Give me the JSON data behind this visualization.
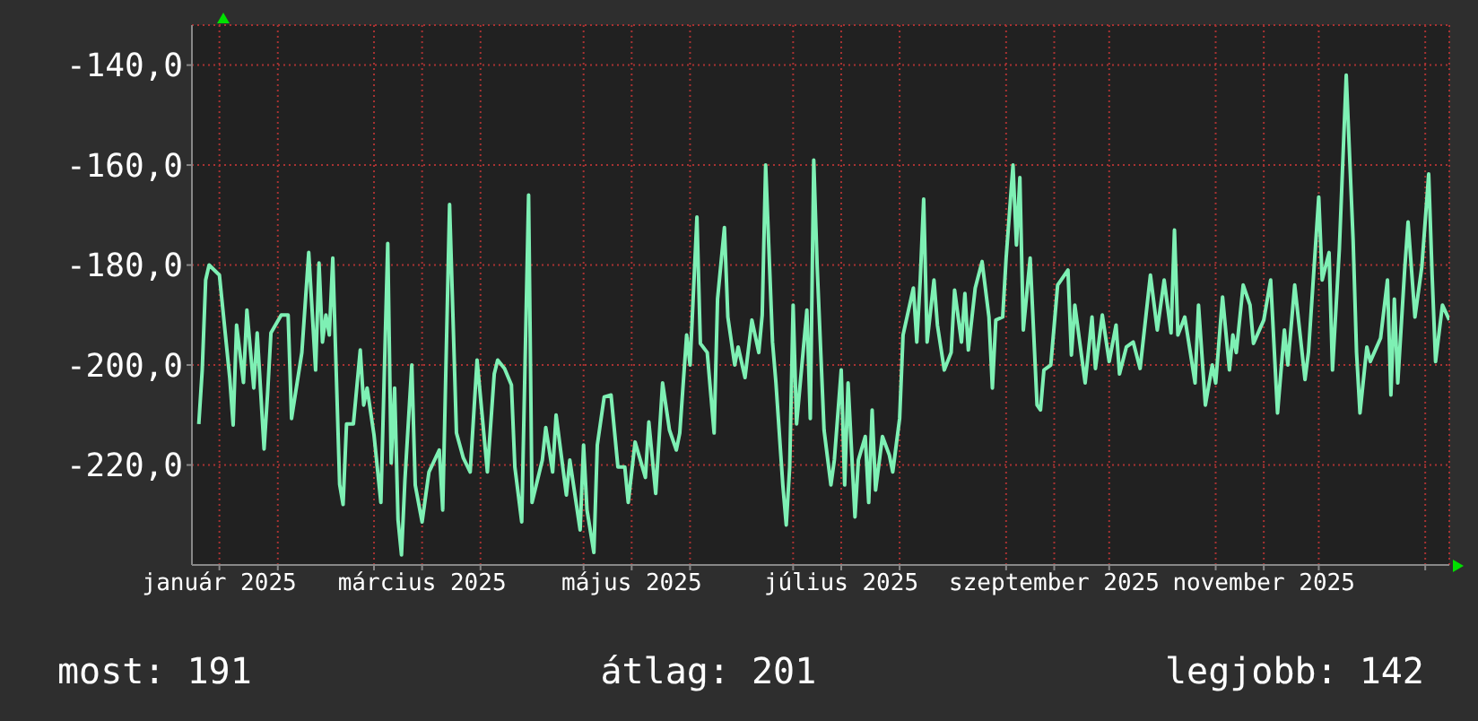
{
  "chart_data": {
    "type": "line",
    "xlim": [
      "2025-01-07",
      "2026-01-08"
    ],
    "ylim": [
      -240,
      -132
    ],
    "yticks": [
      {
        "value": -140,
        "label": "-140,0"
      },
      {
        "value": -160,
        "label": "-160,0"
      },
      {
        "value": -180,
        "label": "-180,0"
      },
      {
        "value": -200,
        "label": "-200,0"
      },
      {
        "value": -220,
        "label": "-220,0"
      }
    ],
    "xticks": [
      {
        "value": "2025-01-15",
        "label": "január 2025"
      },
      {
        "value": "2025-02-01",
        "label": null
      },
      {
        "value": "2025-03-01",
        "label": null
      },
      {
        "value": "2025-03-15",
        "label": "március 2025"
      },
      {
        "value": "2025-04-01",
        "label": null
      },
      {
        "value": "2025-05-01",
        "label": null
      },
      {
        "value": "2025-05-15",
        "label": "május 2025"
      },
      {
        "value": "2025-06-01",
        "label": null
      },
      {
        "value": "2025-07-01",
        "label": null
      },
      {
        "value": "2025-07-15",
        "label": "július 2025"
      },
      {
        "value": "2025-08-01",
        "label": null
      },
      {
        "value": "2025-09-01",
        "label": null
      },
      {
        "value": "2025-09-15",
        "label": "szeptember 2025"
      },
      {
        "value": "2025-10-01",
        "label": null
      },
      {
        "value": "2025-11-01",
        "label": null
      },
      {
        "value": "2025-11-15",
        "label": "november 2025"
      },
      {
        "value": "2025-12-01",
        "label": null
      },
      {
        "value": "2026-01-01",
        "label": null
      }
    ],
    "grid": true,
    "marker": "none",
    "line_style": "solid",
    "annotations": [
      "most: 191",
      "átlag: 201",
      "legjobb: 142"
    ],
    "series": [
      {
        "color": "#7ef0b4",
        "x": [
          "2025-01-09",
          "2025-01-10",
          "2025-01-11",
          "2025-01-12",
          "2025-01-15",
          "2025-01-18",
          "2025-01-19",
          "2025-01-20",
          "2025-01-22",
          "2025-01-23",
          "2025-01-25",
          "2025-01-26",
          "2025-01-28",
          "2025-01-29",
          "2025-01-30",
          "2025-02-02",
          "2025-02-04",
          "2025-02-05",
          "2025-02-08",
          "2025-02-10",
          "2025-02-12",
          "2025-02-13",
          "2025-02-14",
          "2025-02-15",
          "2025-02-16",
          "2025-02-17",
          "2025-02-19",
          "2025-02-20",
          "2025-02-21",
          "2025-02-23",
          "2025-02-25",
          "2025-02-26",
          "2025-02-27",
          "2025-03-01",
          "2025-03-03",
          "2025-03-05",
          "2025-03-06",
          "2025-03-07",
          "2025-03-08",
          "2025-03-09",
          "2025-03-10",
          "2025-03-12",
          "2025-03-13",
          "2025-03-15",
          "2025-03-17",
          "2025-03-20",
          "2025-03-21",
          "2025-03-23",
          "2025-03-25",
          "2025-03-27",
          "2025-03-29",
          "2025-03-31",
          "2025-04-03",
          "2025-04-05",
          "2025-04-06",
          "2025-04-08",
          "2025-04-10",
          "2025-04-11",
          "2025-04-13",
          "2025-04-15",
          "2025-04-16",
          "2025-04-19",
          "2025-04-20",
          "2025-04-22",
          "2025-04-23",
          "2025-04-26",
          "2025-04-27",
          "2025-04-30",
          "2025-05-01",
          "2025-05-02",
          "2025-05-04",
          "2025-05-05",
          "2025-05-07",
          "2025-05-09",
          "2025-05-11",
          "2025-05-13",
          "2025-05-14",
          "2025-05-16",
          "2025-05-19",
          "2025-05-20",
          "2025-05-22",
          "2025-05-24",
          "2025-05-26",
          "2025-05-28",
          "2025-05-29",
          "2025-05-31",
          "2025-06-01",
          "2025-06-03",
          "2025-06-04",
          "2025-06-06",
          "2025-06-08",
          "2025-06-09",
          "2025-06-11",
          "2025-06-12",
          "2025-06-14",
          "2025-06-15",
          "2025-06-17",
          "2025-06-19",
          "2025-06-21",
          "2025-06-22",
          "2025-06-23",
          "2025-06-25",
          "2025-06-26",
          "2025-06-28",
          "2025-06-29",
          "2025-06-30",
          "2025-07-01",
          "2025-07-02",
          "2025-07-05",
          "2025-07-06",
          "2025-07-07",
          "2025-07-08",
          "2025-07-10",
          "2025-07-12",
          "2025-07-13",
          "2025-07-15",
          "2025-07-16",
          "2025-07-17",
          "2025-07-19",
          "2025-07-20",
          "2025-07-22",
          "2025-07-23",
          "2025-07-24",
          "2025-07-25",
          "2025-07-27",
          "2025-07-29",
          "2025-07-30",
          "2025-08-01",
          "2025-08-02",
          "2025-08-05",
          "2025-08-06",
          "2025-08-07",
          "2025-08-08",
          "2025-08-09",
          "2025-08-11",
          "2025-08-12",
          "2025-08-14",
          "2025-08-16",
          "2025-08-17",
          "2025-08-19",
          "2025-08-20",
          "2025-08-21",
          "2025-08-23",
          "2025-08-25",
          "2025-08-27",
          "2025-08-28",
          "2025-08-29",
          "2025-08-31",
          "2025-09-01",
          "2025-09-03",
          "2025-09-04",
          "2025-09-05",
          "2025-09-06",
          "2025-09-08",
          "2025-09-10",
          "2025-09-11",
          "2025-09-12",
          "2025-09-14",
          "2025-09-16",
          "2025-09-19",
          "2025-09-20",
          "2025-09-21",
          "2025-09-24",
          "2025-09-26",
          "2025-09-27",
          "2025-09-29",
          "2025-10-01",
          "2025-10-03",
          "2025-10-04",
          "2025-10-06",
          "2025-10-08",
          "2025-10-10",
          "2025-10-13",
          "2025-10-15",
          "2025-10-17",
          "2025-10-19",
          "2025-10-20",
          "2025-10-21",
          "2025-10-23",
          "2025-10-26",
          "2025-10-27",
          "2025-10-29",
          "2025-10-31",
          "2025-11-01",
          "2025-11-03",
          "2025-11-05",
          "2025-11-06",
          "2025-11-07",
          "2025-11-09",
          "2025-11-11",
          "2025-11-12",
          "2025-11-15",
          "2025-11-17",
          "2025-11-19",
          "2025-11-21",
          "2025-11-22",
          "2025-11-24",
          "2025-11-27",
          "2025-11-28",
          "2025-12-01",
          "2025-12-02",
          "2025-12-04",
          "2025-12-05",
          "2025-12-07",
          "2025-12-09",
          "2025-12-11",
          "2025-12-12",
          "2025-12-13",
          "2025-12-15",
          "2025-12-16",
          "2025-12-19",
          "2025-12-21",
          "2025-12-22",
          "2025-12-23",
          "2025-12-24",
          "2025-12-26",
          "2025-12-27",
          "2025-12-29",
          "2025-12-31",
          "2026-01-02",
          "2026-01-03",
          "2026-01-04",
          "2026-01-06",
          "2026-01-08"
        ],
        "values": [
          -211.8,
          -201,
          -183,
          -180,
          -182,
          -202.5,
          -212,
          -192,
          -203.5,
          -189,
          -204.6,
          -193.6,
          -216.8,
          -206,
          -193.6,
          -190,
          -190,
          -210.7,
          -197.5,
          -177.5,
          -201,
          -179.6,
          -195.4,
          -190,
          -194,
          -178.6,
          -223.9,
          -227.9,
          -211.8,
          -211.8,
          -197,
          -208,
          -204.6,
          -214,
          -227.5,
          -175.7,
          -219.6,
          -204.6,
          -231,
          -238,
          -223,
          -200,
          -224,
          -231.4,
          -221.4,
          -217,
          -229,
          -167.9,
          -213.6,
          -218.6,
          -221.4,
          -199,
          -221.4,
          -201.8,
          -199,
          -200.7,
          -204,
          -220.4,
          -231.4,
          -166,
          -227.5,
          -219,
          -212.5,
          -221.4,
          -210,
          -226,
          -219,
          -233,
          -216,
          -229,
          -237.5,
          -216,
          -206.4,
          -206,
          -220.4,
          -220.4,
          -227.5,
          -215.4,
          -222.5,
          -211.4,
          -225.7,
          -203.6,
          -213,
          -217,
          -213.6,
          -194,
          -200,
          -170.4,
          -195.7,
          -197.5,
          -213.6,
          -186.8,
          -172.5,
          -190.4,
          -200,
          -196.4,
          -202.5,
          -191,
          -197.5,
          -190,
          -160,
          -195.4,
          -203.6,
          -224,
          -232,
          -220.4,
          -188,
          -211.8,
          -189,
          -210.7,
          -159,
          -180.4,
          -213,
          -224,
          -219,
          -201,
          -224,
          -203.6,
          -230.4,
          -219,
          -214.3,
          -227.5,
          -209,
          -225,
          -214.3,
          -218,
          -221.4,
          -210.7,
          -194,
          -184.6,
          -195.4,
          -183,
          -166.8,
          -195.4,
          -183,
          -192,
          -201,
          -197.5,
          -185,
          -195.4,
          -185.7,
          -197,
          -184.6,
          -179.3,
          -190.4,
          -204.6,
          -191,
          -190.4,
          -178.6,
          -160,
          -176,
          -162.5,
          -193,
          -178.6,
          -208,
          -209,
          -201,
          -200,
          -184,
          -181,
          -198,
          -188,
          -203.6,
          -190.4,
          -200.7,
          -190,
          -199.3,
          -192,
          -201.8,
          -196.4,
          -195.4,
          -200.7,
          -182,
          -193,
          -183,
          -193.6,
          -173,
          -194,
          -190.4,
          -203.6,
          -188,
          -208,
          -200,
          -203.6,
          -186.4,
          -201,
          -194,
          -197.5,
          -184,
          -188,
          -195.7,
          -191,
          -183,
          -209.6,
          -193,
          -200,
          -184,
          -202.9,
          -197.5,
          -166.4,
          -183,
          -177.5,
          -201,
          -176.8,
          -142,
          -175,
          -197.5,
          -209.6,
          -196.4,
          -199.3,
          -194.6,
          -183,
          -206,
          -186.8,
          -203.6,
          -181,
          -171.4,
          -190.4,
          -180.4,
          -161.8,
          -182,
          -199.3,
          -188,
          -191
        ]
      }
    ]
  }
}
